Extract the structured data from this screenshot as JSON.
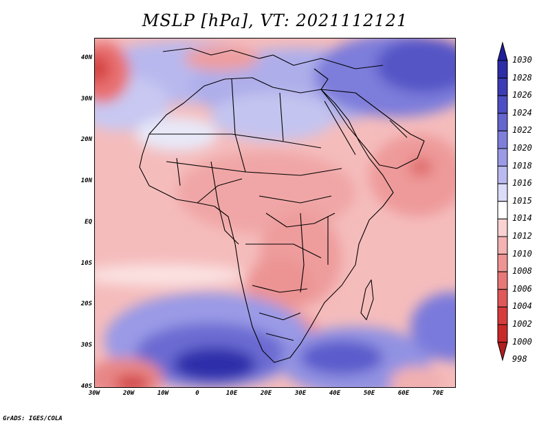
{
  "title": "MSLP [hPa], VT: 2021112121",
  "footer": "GrADS: IGES/COLA",
  "lat_ticks": [
    "40N",
    "30N",
    "20N",
    "10N",
    "EQ",
    "10S",
    "20S",
    "30S",
    "40S"
  ],
  "lon_ticks": [
    "30W",
    "20W",
    "10W",
    "0",
    "10E",
    "20E",
    "30E",
    "40E",
    "50E",
    "60E",
    "70E"
  ],
  "colorbar": {
    "levels": [
      {
        "label": "1030",
        "color": "#1f1f9a"
      },
      {
        "label": "1028",
        "color": "#2d2da8"
      },
      {
        "label": "1026",
        "color": "#3c3cb6"
      },
      {
        "label": "1024",
        "color": "#4e4ec4"
      },
      {
        "label": "1022",
        "color": "#6565d0"
      },
      {
        "label": "1020",
        "color": "#7e7edb"
      },
      {
        "label": "1018",
        "color": "#9a9ae6"
      },
      {
        "label": "1016",
        "color": "#babaf0"
      },
      {
        "label": "1015",
        "color": "#dcdcf8"
      },
      {
        "label": "1014",
        "color": "#ffffff"
      },
      {
        "label": "1012",
        "color": "#fad2d2"
      },
      {
        "label": "1010",
        "color": "#f4b2b2"
      },
      {
        "label": "1008",
        "color": "#ee9494"
      },
      {
        "label": "1006",
        "color": "#e87878"
      },
      {
        "label": "1004",
        "color": "#e05858"
      },
      {
        "label": "1002",
        "color": "#d63c3c"
      },
      {
        "label": "1000",
        "color": "#c82828"
      },
      {
        "label": "998",
        "color": "#b01e1e"
      }
    ]
  }
}
